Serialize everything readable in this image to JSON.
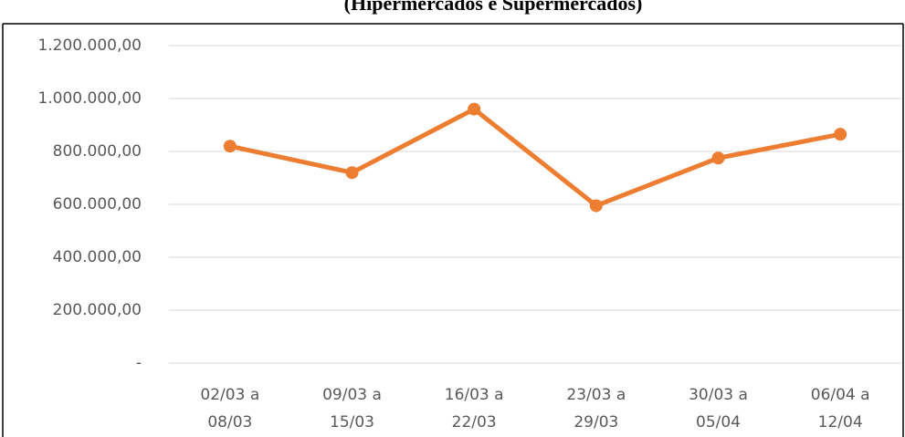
{
  "chart_data": {
    "type": "line",
    "title": "(Hipermercados e Supermercados)",
    "categories": [
      [
        "02/03 a",
        "08/03"
      ],
      [
        "09/03 a",
        "15/03"
      ],
      [
        "16/03 a",
        "22/03"
      ],
      [
        "23/03 a",
        "29/03"
      ],
      [
        "30/03 a",
        "05/04"
      ],
      [
        "06/04 a",
        "12/04"
      ]
    ],
    "values": [
      820000,
      720000,
      960000,
      595000,
      775000,
      865000
    ],
    "color": "#ed7d31",
    "ylim": [
      0,
      1200000
    ],
    "yticks": [
      {
        "value": 0,
        "label": "-"
      },
      {
        "value": 200000,
        "label": "200.000,00"
      },
      {
        "value": 400000,
        "label": "400.000,00"
      },
      {
        "value": 600000,
        "label": "600.000,00"
      },
      {
        "value": 800000,
        "label": "800.000,00"
      },
      {
        "value": 1000000,
        "label": "1.000.000,00"
      },
      {
        "value": 1200000,
        "label": "1.200.000,00"
      }
    ],
    "grid": true
  }
}
